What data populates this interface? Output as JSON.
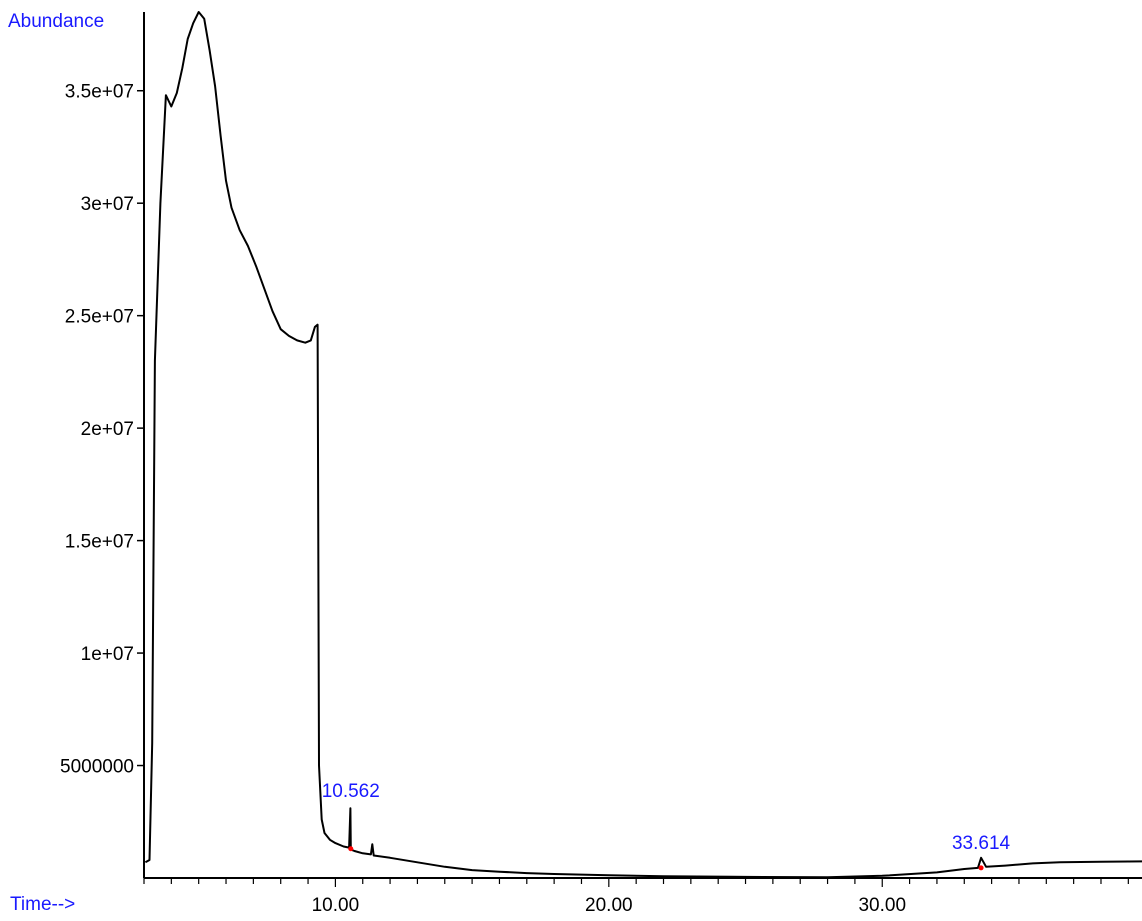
{
  "chart_data": {
    "type": "line",
    "ylabel": "Abundance",
    "xlabel": "Time-->",
    "xlim": [
      3.0,
      39.5
    ],
    "ylim": [
      0,
      38500000
    ],
    "xticks": [
      10,
      20,
      30
    ],
    "xtick_labels": [
      "10.00",
      "20.00",
      "30.00"
    ],
    "yticks": [
      5000000,
      10000000,
      15000000,
      20000000,
      25000000,
      30000000,
      35000000
    ],
    "ytick_labels": [
      "5000000",
      "1e+07",
      "1.5e+07",
      "2e+07",
      "2.5e+07",
      "3e+07",
      "3.5e+07"
    ],
    "grid": false,
    "colors": {
      "line": "#000000",
      "labels": "#1a1aff",
      "marker": "#ff0000"
    },
    "series": [
      {
        "x": [
          3.05,
          3.2,
          3.3,
          3.4,
          3.6,
          3.8,
          4.0,
          4.2,
          4.4,
          4.6,
          4.8,
          5.0,
          5.2,
          5.4,
          5.6,
          5.8,
          6.0,
          6.2,
          6.5,
          6.8,
          7.1,
          7.4,
          7.7,
          8.0,
          8.3,
          8.6,
          8.9,
          9.1,
          9.25,
          9.35,
          9.4,
          9.5,
          9.6,
          9.8,
          10.0,
          10.3,
          10.5,
          10.55,
          10.562,
          10.6,
          10.7,
          11.0,
          11.3,
          11.35,
          11.4,
          12.0,
          13.0,
          14.0,
          15.0,
          16.0,
          17.0,
          18.0,
          20.0,
          22.0,
          24.5,
          25.0,
          28.0,
          30.0,
          32.0,
          33.0,
          33.5,
          33.614,
          33.8,
          34.5,
          35.5,
          36.5,
          38.0,
          39.5
        ],
        "y": [
          700000,
          800000,
          6000000,
          23000000,
          30000000,
          34800000,
          34300000,
          34900000,
          36000000,
          37300000,
          38000000,
          38500000,
          38200000,
          36800000,
          35200000,
          33000000,
          31000000,
          29800000,
          28800000,
          28100000,
          27200000,
          26200000,
          25200000,
          24400000,
          24100000,
          23900000,
          23800000,
          23900000,
          24500000,
          24600000,
          5000000,
          2600000,
          2000000,
          1700000,
          1550000,
          1400000,
          1350000,
          3100000,
          1300000,
          1250000,
          1200000,
          1100000,
          1050000,
          1500000,
          1000000,
          900000,
          700000,
          500000,
          350000,
          280000,
          220000,
          180000,
          120000,
          80000,
          60000,
          50000,
          30000,
          100000,
          250000,
          400000,
          450000,
          900000,
          500000,
          550000,
          650000,
          700000,
          720000,
          740000
        ]
      }
    ],
    "annotations": [
      {
        "label": "10.562",
        "x": 10.562,
        "y": 1300000
      },
      {
        "label": "33.614",
        "x": 33.614,
        "y": 450000
      }
    ]
  }
}
